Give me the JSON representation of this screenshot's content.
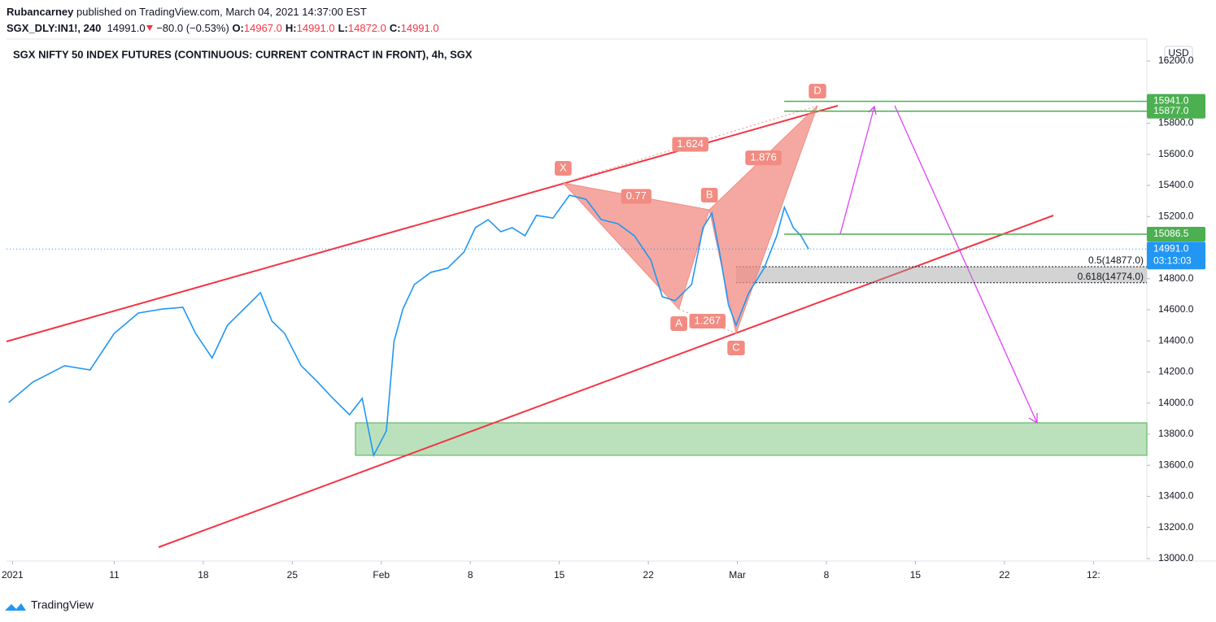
{
  "header": {
    "publisher": "Rubancarney",
    "published": "published on TradingView.com, March 04, 2021 14:37:00 EST",
    "symbol": "SGX_DLY:IN1!, 240",
    "last": "14991.0",
    "change": "−80.0 (−0.53%)",
    "ohlc": [
      {
        "key": "O:",
        "value": "14967.0"
      },
      {
        "key": "H:",
        "value": "14991.0"
      },
      {
        "key": "L:",
        "value": "14872.0"
      },
      {
        "key": "C:",
        "value": "14991.0"
      }
    ]
  },
  "footer": {
    "brand": "TradingView"
  },
  "chart_data": {
    "type": "line",
    "title": "SGX NIFTY 50 INDEX FUTURES (CONTINUOUS: CURRENT CONTRACT IN FRONT), 4h, SGX",
    "currency": "USD",
    "color": "#2196f3",
    "x": [
      1.7,
      3.6,
      6.1,
      8.1,
      10,
      11.9,
      13.8,
      15.4,
      16.4,
      17.7,
      18.9,
      20.2,
      21.5,
      22.4,
      23.4,
      24.7,
      26,
      27.2,
      28.5,
      29.5,
      30.4,
      31.4,
      32,
      32.7,
      33.6,
      34.9,
      36.2,
      37.5,
      38.4,
      39.4,
      40.4,
      41.3,
      42.3,
      43.2,
      44.5,
      45.8,
      47.1,
      48.3,
      49.6,
      50.9,
      52.2,
      53.1,
      54.1,
      55.4,
      56.3,
      57,
      57.6,
      58.3,
      58.9,
      59.9,
      61.1,
      62.1,
      62.7,
      63.4,
      64,
      64.6
    ],
    "values": [
      14004,
      14135,
      14240,
      14213,
      14448,
      14579,
      14605,
      14616,
      14448,
      14290,
      14500,
      14605,
      14710,
      14527,
      14448,
      14240,
      14135,
      14030,
      13925,
      14030,
      13664,
      13821,
      14396,
      14605,
      14762,
      14841,
      14867,
      14971,
      15128,
      15180,
      15102,
      15128,
      15076,
      15207,
      15190,
      15337,
      15311,
      15180,
      15154,
      15076,
      14919,
      14684,
      14658,
      14762,
      15128,
      15222,
      14971,
      14632,
      14500,
      14710,
      14867,
      15076,
      15259,
      15128,
      15076,
      14991
    ],
    "xlim": [
      1.53,
      91.2
    ],
    "ylim": [
      12984,
      16331
    ],
    "xticks": [
      {
        "value": 2,
        "label": "2021"
      },
      {
        "value": 10,
        "label": "11"
      },
      {
        "value": 17,
        "label": "18"
      },
      {
        "value": 24,
        "label": "25"
      },
      {
        "value": 31,
        "label": "Feb"
      },
      {
        "value": 38,
        "label": "8"
      },
      {
        "value": 45,
        "label": "15"
      },
      {
        "value": 52,
        "label": "22"
      },
      {
        "value": 59,
        "label": "Mar"
      },
      {
        "value": 66,
        "label": "8"
      },
      {
        "value": 73,
        "label": "15"
      },
      {
        "value": 80,
        "label": "22"
      },
      {
        "value": 87,
        "label": "12:"
      }
    ],
    "yticks": [
      {
        "value": 16200,
        "label": "16200.0"
      },
      {
        "value": 15800,
        "label": "15800.0"
      },
      {
        "value": 15600,
        "label": "15600.0"
      },
      {
        "value": 15400,
        "label": "15400.0"
      },
      {
        "value": 15200,
        "label": "15200.0"
      },
      {
        "value": 14800,
        "label": "14800.0"
      },
      {
        "value": 14600,
        "label": "14600.0"
      },
      {
        "value": 14400,
        "label": "14400.0"
      },
      {
        "value": 14200,
        "label": "14200.0"
      },
      {
        "value": 14000,
        "label": "14000.0"
      },
      {
        "value": 13800,
        "label": "13800.0"
      },
      {
        "value": 13600,
        "label": "13600.0"
      },
      {
        "value": 13400,
        "label": "13400.0"
      },
      {
        "value": 13200,
        "label": "13200.0"
      },
      {
        "value": 13000,
        "label": "13000.0"
      }
    ],
    "levels": [
      {
        "value": 15941,
        "label": "15941.0"
      },
      {
        "value": 15877,
        "label": "15877.0"
      },
      {
        "value": 15086.5,
        "label": "15086.5"
      }
    ],
    "level_color": "#4caf50",
    "price_tag": {
      "value": 14991,
      "label": "14991.0",
      "countdown": "03:13:03"
    },
    "fib": [
      {
        "value": 14877,
        "label": "0.5(14877.0)"
      },
      {
        "value": 14774,
        "label": "0.618(14774.0)"
      }
    ],
    "pattern": {
      "color": "#f28b82",
      "points": [
        {
          "label": "X",
          "x": 45.3,
          "y": 15416
        },
        {
          "label": "A",
          "x": 54.4,
          "y": 14605
        },
        {
          "label": "B",
          "x": 56.8,
          "y": 15243
        },
        {
          "label": "C",
          "x": 58.9,
          "y": 14448
        },
        {
          "label": "D",
          "x": 65.3,
          "y": 15912
        }
      ],
      "ratios": [
        0.77,
        1.267,
        1.624,
        1.876
      ]
    }
  }
}
